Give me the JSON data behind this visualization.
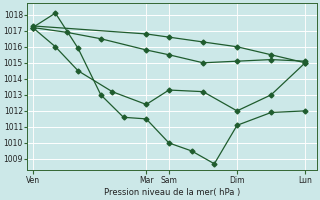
{
  "bg_color": "#cce8e8",
  "grid_color": "#ffffff",
  "line_color": "#1f5c2e",
  "xlabel": "Pression niveau de la mer( hPa )",
  "ylim": [
    1008.3,
    1018.7
  ],
  "yticks": [
    1009,
    1010,
    1011,
    1012,
    1013,
    1014,
    1015,
    1016,
    1017,
    1018
  ],
  "xtick_labels": [
    "Ven",
    "Mar",
    "Sam",
    "Dim",
    "Lun"
  ],
  "xtick_positions": [
    0,
    10,
    12,
    18,
    24
  ],
  "xlim": [
    -0.5,
    25
  ],
  "lines": [
    {
      "x": [
        0,
        10,
        12,
        15,
        18,
        21,
        24
      ],
      "y": [
        1017.3,
        1016.8,
        1016.6,
        1016.3,
        1016.0,
        1015.5,
        1015.0
      ]
    },
    {
      "x": [
        0,
        3,
        6,
        10,
        12,
        15,
        18,
        21,
        24
      ],
      "y": [
        1017.2,
        1016.9,
        1016.5,
        1015.8,
        1015.5,
        1015.0,
        1015.1,
        1015.2,
        1015.1
      ]
    },
    {
      "x": [
        0,
        2,
        4,
        7,
        10,
        12,
        15,
        18,
        21,
        24
      ],
      "y": [
        1017.2,
        1016.0,
        1014.5,
        1013.2,
        1012.4,
        1013.3,
        1013.2,
        1012.0,
        1013.0,
        1015.0
      ]
    },
    {
      "x": [
        0,
        2,
        4,
        6,
        8,
        10,
        12,
        14,
        16,
        18,
        21,
        24
      ],
      "y": [
        1017.2,
        1018.1,
        1015.9,
        1013.0,
        1011.6,
        1011.5,
        1010.0,
        1009.5,
        1008.7,
        1011.1,
        1011.9,
        1012.0
      ]
    }
  ],
  "marker": "D",
  "markersize": 2.5,
  "linewidth": 0.9
}
